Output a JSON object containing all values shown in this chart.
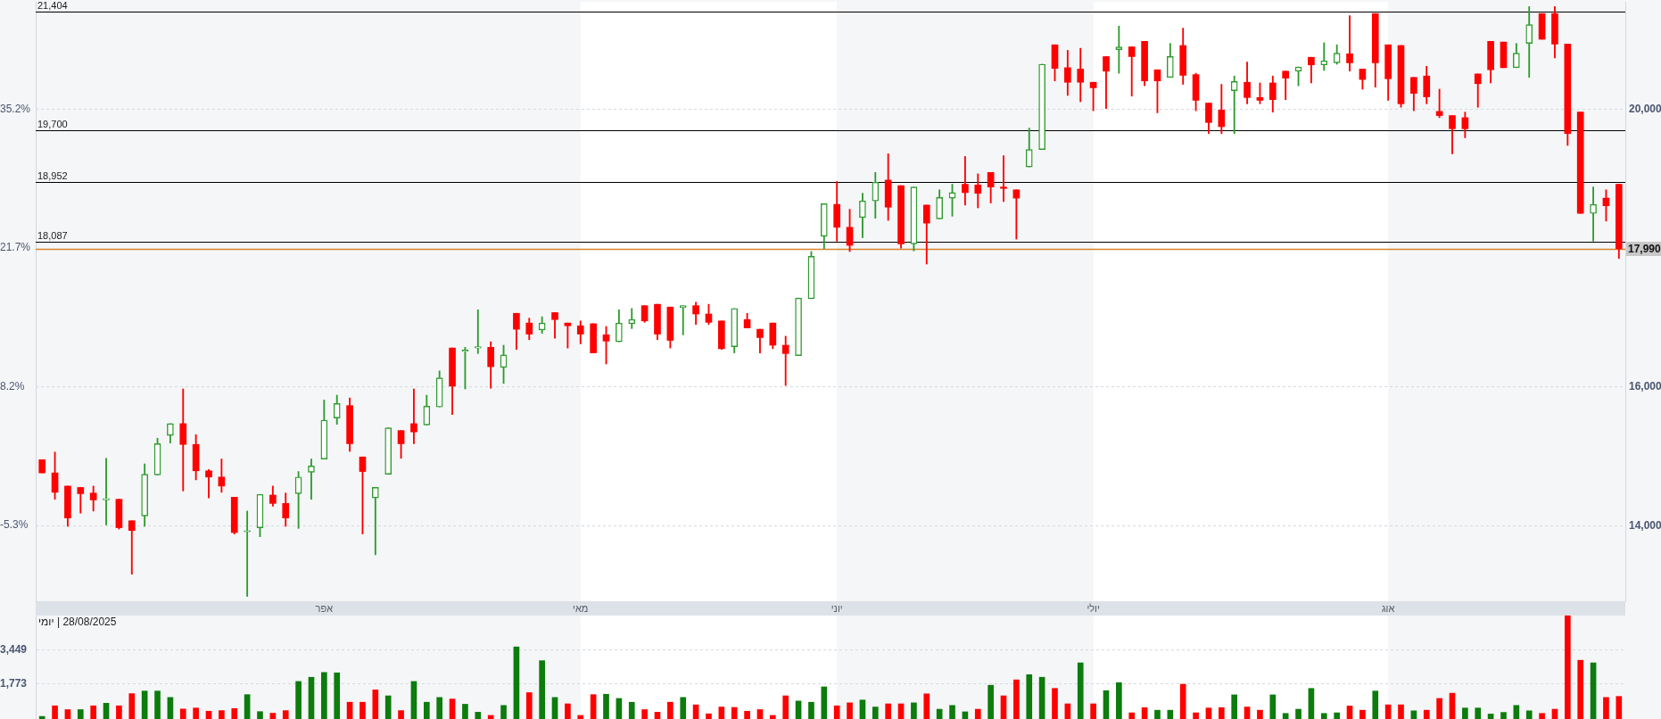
{
  "chart_data": [
    {
      "type": "candlestick",
      "categories": [
        null,
        null,
        null,
        null,
        null,
        null,
        null,
        null,
        null,
        null,
        null,
        null,
        null,
        null,
        null,
        null,
        null,
        null,
        null,
        null,
        null,
        null,
        "אפר",
        null,
        null,
        null,
        null,
        null,
        null,
        null,
        null,
        null,
        null,
        null,
        null,
        null,
        null,
        null,
        null,
        null,
        null,
        null,
        "מאי",
        null,
        null,
        null,
        null,
        null,
        null,
        null,
        null,
        null,
        null,
        null,
        null,
        null,
        null,
        null,
        null,
        null,
        null,
        null,
        "יוני",
        null,
        null,
        null,
        null,
        null,
        null,
        null,
        null,
        null,
        null,
        null,
        null,
        null,
        null,
        null,
        null,
        null,
        null,
        null,
        "יולי",
        null,
        null,
        null,
        null,
        null,
        null,
        null,
        null,
        null,
        null,
        null,
        null,
        null,
        null,
        null,
        null,
        null,
        null,
        null,
        null,
        null,
        null,
        "אוג",
        null,
        null,
        null,
        null,
        null,
        null,
        null,
        null,
        null,
        null,
        null,
        null,
        null,
        null,
        null,
        null,
        null,
        null
      ],
      "ohlc": [
        [
          14950,
          14950,
          14760,
          14760
        ],
        [
          14760,
          15060,
          14380,
          14480
        ],
        [
          14570,
          14570,
          13990,
          14110
        ],
        [
          14550,
          14550,
          14180,
          14460
        ],
        [
          14470,
          14570,
          14210,
          14370
        ],
        [
          14370,
          14970,
          14010,
          14380
        ],
        [
          14380,
          14380,
          13950,
          13970
        ],
        [
          14070,
          14070,
          13300,
          13930
        ],
        [
          14140,
          14890,
          13990,
          14740
        ],
        [
          14730,
          15260,
          14730,
          15180
        ],
        [
          15300,
          15470,
          15190,
          15470
        ],
        [
          15470,
          15970,
          14500,
          15170
        ],
        [
          15170,
          15310,
          14660,
          14790
        ],
        [
          14790,
          14810,
          14400,
          14700
        ],
        [
          14700,
          14960,
          14480,
          14570
        ],
        [
          14410,
          14410,
          13880,
          13900
        ],
        [
          13910,
          14210,
          12980,
          13920
        ],
        [
          13970,
          14450,
          13840,
          14450
        ],
        [
          14440,
          14570,
          14280,
          14320
        ],
        [
          14320,
          14470,
          13990,
          14110
        ],
        [
          14460,
          14780,
          13960,
          14700
        ],
        [
          14770,
          14960,
          14380,
          14860
        ],
        [
          14960,
          15810,
          14960,
          15520
        ],
        [
          15550,
          15880,
          15460,
          15760
        ],
        [
          15730,
          15840,
          15070,
          15180
        ],
        [
          14990,
          14990,
          13880,
          14780
        ],
        [
          14400,
          14550,
          13580,
          14550
        ],
        [
          14740,
          15410,
          14740,
          15410
        ],
        [
          15370,
          15370,
          14970,
          15180
        ],
        [
          15470,
          15970,
          15180,
          15350
        ],
        [
          15450,
          15880,
          15450,
          15720
        ],
        [
          15710,
          16230,
          15710,
          16130
        ],
        [
          16560,
          16560,
          15600,
          16010
        ],
        [
          16510,
          16570,
          15970,
          16530
        ],
        [
          16560,
          17110,
          16480,
          16570
        ],
        [
          16570,
          16650,
          15980,
          16290
        ],
        [
          16280,
          16600,
          16050,
          16460
        ],
        [
          17060,
          17060,
          16540,
          16830
        ],
        [
          16920,
          16990,
          16680,
          16760
        ],
        [
          16820,
          17010,
          16770,
          16920
        ],
        [
          17070,
          17070,
          16700,
          16970
        ],
        [
          16920,
          16920,
          16560,
          16880
        ],
        [
          16880,
          16950,
          16620,
          16760
        ],
        [
          16910,
          16910,
          16490,
          16490
        ],
        [
          16750,
          16870,
          16330,
          16660
        ],
        [
          16650,
          17110,
          16650,
          16920
        ],
        [
          16910,
          17130,
          16840,
          16970
        ],
        [
          17170,
          17170,
          16930,
          16950
        ],
        [
          17190,
          17190,
          16680,
          16760
        ],
        [
          17150,
          17150,
          16560,
          16670
        ],
        [
          17140,
          17170,
          16750,
          17170
        ],
        [
          17170,
          17220,
          16900,
          17050
        ],
        [
          17050,
          17190,
          16900,
          16930
        ],
        [
          16950,
          16950,
          16540,
          16550
        ],
        [
          16580,
          17130,
          16490,
          17130
        ],
        [
          16970,
          17060,
          16850,
          16850
        ],
        [
          16830,
          16830,
          16490,
          16710
        ],
        [
          16920,
          16920,
          16550,
          16600
        ],
        [
          16600,
          16730,
          16020,
          16480
        ],
        [
          16450,
          17280,
          16450,
          17280
        ],
        [
          17270,
          17950,
          17270,
          17880
        ],
        [
          18170,
          18640,
          17990,
          18640
        ],
        [
          18630,
          18960,
          18100,
          18300
        ],
        [
          18300,
          18560,
          17950,
          18040
        ],
        [
          18440,
          18790,
          18150,
          18680
        ],
        [
          18680,
          19090,
          18430,
          18950
        ],
        [
          18980,
          19360,
          18400,
          18590
        ],
        [
          18900,
          18900,
          18000,
          18060
        ],
        [
          18060,
          18880,
          17960,
          18880
        ],
        [
          18620,
          18620,
          17770,
          18360
        ],
        [
          18420,
          18840,
          18420,
          18730
        ],
        [
          18720,
          18920,
          18460,
          18800
        ],
        [
          18920,
          19320,
          18620,
          18800
        ],
        [
          18910,
          19070,
          18580,
          18790
        ],
        [
          19090,
          19090,
          18650,
          18880
        ],
        [
          18880,
          19330,
          18670,
          18860
        ],
        [
          18840,
          18840,
          18130,
          18720
        ],
        [
          19170,
          19730,
          19170,
          19420
        ],
        [
          19420,
          20650,
          19420,
          20650
        ],
        [
          20930,
          20930,
          20410,
          20590
        ],
        [
          20600,
          20850,
          20200,
          20390
        ],
        [
          20580,
          20880,
          20110,
          20390
        ],
        [
          20390,
          20390,
          19980,
          20310
        ],
        [
          20760,
          20760,
          20010,
          20550
        ],
        [
          20860,
          21200,
          20520,
          20900
        ],
        [
          20900,
          20900,
          20190,
          20760
        ],
        [
          20980,
          20980,
          20340,
          20410
        ],
        [
          20570,
          20570,
          19950,
          20410
        ],
        [
          20460,
          20950,
          20460,
          20760
        ],
        [
          20920,
          21170,
          20360,
          20490
        ],
        [
          20500,
          20520,
          19980,
          20130
        ],
        [
          20090,
          20090,
          19650,
          19810
        ],
        [
          19990,
          20360,
          19650,
          19750
        ],
        [
          20270,
          20480,
          19650,
          20400
        ],
        [
          20390,
          20680,
          20080,
          20170
        ],
        [
          20170,
          20380,
          20080,
          20130
        ],
        [
          20380,
          20480,
          19960,
          20140
        ],
        [
          20550,
          20550,
          20140,
          20450
        ],
        [
          20550,
          20610,
          20340,
          20610
        ],
        [
          20750,
          20750,
          20380,
          20640
        ],
        [
          20640,
          20960,
          20560,
          20700
        ],
        [
          20670,
          20930,
          20650,
          20810
        ],
        [
          20800,
          21350,
          20550,
          20670
        ],
        [
          20580,
          20580,
          20290,
          20430
        ],
        [
          21380,
          21380,
          20320,
          20670
        ],
        [
          20930,
          20930,
          20130,
          20440
        ],
        [
          20920,
          20920,
          20030,
          20080
        ],
        [
          20460,
          20460,
          19980,
          20230
        ],
        [
          20480,
          20620,
          20080,
          20180
        ],
        [
          19970,
          20290,
          19880,
          19910
        ],
        [
          19910,
          19910,
          19360,
          19720
        ],
        [
          19880,
          19960,
          19590,
          19720
        ],
        [
          20510,
          20510,
          20030,
          20370
        ],
        [
          20980,
          20980,
          20380,
          20570
        ],
        [
          20970,
          20970,
          20600,
          20600
        ],
        [
          20600,
          20950,
          20600,
          20810
        ],
        [
          20950,
          21480,
          20460,
          21220
        ],
        [
          21380,
          21380,
          21010,
          21010
        ],
        [
          21380,
          21480,
          20740,
          20940
        ],
        [
          20940,
          20940,
          19480,
          19650
        ],
        [
          19960,
          19960,
          18500,
          18500
        ],
        [
          18500,
          18880,
          18100,
          18630
        ],
        [
          18720,
          18840,
          18390,
          18610
        ],
        [
          18920,
          18920,
          17850,
          17990
        ]
      ],
      "colors": [
        "#ff0000",
        "#ff0000",
        "#ff0000",
        "#ff0000",
        "#ff0000",
        "#2e9b2e",
        "#ff0000",
        "#ff0000",
        "#2e9b2e",
        "#2e9b2e",
        "#2e9b2e",
        "#ff0000",
        "#ff0000",
        "#ff0000",
        "#ff0000",
        "#ff0000",
        "#2e9b2e",
        "#2e9b2e",
        "#ff0000",
        "#ff0000",
        "#2e9b2e",
        "#2e9b2e",
        "#2e9b2e",
        "#2e9b2e",
        "#ff0000",
        "#ff0000",
        "#2e9b2e",
        "#2e9b2e",
        "#ff0000",
        "#ff0000",
        "#2e9b2e",
        "#2e9b2e",
        "#ff0000",
        "#2e9b2e",
        "#2e9b2e",
        "#ff0000",
        "#2e9b2e",
        "#ff0000",
        "#ff0000",
        "#2e9b2e",
        "#ff0000",
        "#ff0000",
        "#ff0000",
        "#ff0000",
        "#ff0000",
        "#2e9b2e",
        "#2e9b2e",
        "#ff0000",
        "#ff0000",
        "#ff0000",
        "#2e9b2e",
        "#ff0000",
        "#ff0000",
        "#ff0000",
        "#2e9b2e",
        "#ff0000",
        "#ff0000",
        "#ff0000",
        "#ff0000",
        "#2e9b2e",
        "#2e9b2e",
        "#2e9b2e",
        "#ff0000",
        "#ff0000",
        "#2e9b2e",
        "#2e9b2e",
        "#ff0000",
        "#ff0000",
        "#2e9b2e",
        "#ff0000",
        "#2e9b2e",
        "#2e9b2e",
        "#ff0000",
        "#ff0000",
        "#ff0000",
        "#ff0000",
        "#ff0000",
        "#2e9b2e",
        "#2e9b2e",
        "#ff0000",
        "#ff0000",
        "#ff0000",
        "#ff0000",
        "#ff0000",
        "#2e9b2e",
        "#ff0000",
        "#ff0000",
        "#ff0000",
        "#2e9b2e",
        "#ff0000",
        "#ff0000",
        "#ff0000",
        "#ff0000",
        "#2e9b2e",
        "#ff0000",
        "#ff0000",
        "#ff0000",
        "#ff0000",
        "#2e9b2e",
        "#ff0000",
        "#2e9b2e",
        "#2e9b2e",
        "#ff0000",
        "#ff0000",
        "#ff0000",
        "#ff0000",
        "#ff0000",
        "#ff0000",
        "#ff0000",
        "#ff0000",
        "#ff0000",
        "#ff0000",
        "#ff0000",
        "#ff0000",
        "#ff0000",
        "#2e9b2e",
        "#2e9b2e",
        "#ff0000",
        "#ff0000",
        "#ff0000",
        "#ff0000",
        "#2e9b2e",
        "#ff0000",
        "#ff0000"
      ],
      "ylim": [
        12910,
        21550
      ],
      "yticks": [
        {
          "value": 14000,
          "label": "14,000"
        },
        {
          "value": 16000,
          "label": "16,000"
        },
        {
          "value": 20000,
          "label": "20,000"
        }
      ],
      "y2lim": [
        -12.7,
        45.7
      ],
      "y2ticks": [
        {
          "value": -5.3,
          "label": "-5.3%"
        },
        {
          "value": 8.2,
          "label": "8.2%"
        },
        {
          "value": 21.7,
          "label": "21.7%"
        },
        {
          "value": 35.2,
          "label": "35.2%"
        }
      ],
      "ref_lines": [
        {
          "axis": "y",
          "value": 21404,
          "label": "21,404",
          "color": "#000000"
        },
        {
          "axis": "y",
          "value": 19700,
          "label": "19,700",
          "color": "#000000"
        },
        {
          "axis": "y",
          "value": 18952,
          "label": "18,952",
          "color": "#000000"
        },
        {
          "axis": "y",
          "value": 18087,
          "label": "18,087",
          "color": "#000000"
        },
        {
          "axis": "y",
          "value": 17990,
          "label": "17,990",
          "color": "#d8842c"
        }
      ],
      "bands": [
        {
          "axis": "x",
          "from": "מאי",
          "to": "יוני",
          "color": "#ffffff"
        },
        {
          "axis": "x",
          "from": "יולי",
          "to": "אוג",
          "color": "#ffffff"
        }
      ],
      "grid": "y"
    },
    {
      "type": "bar",
      "categories": [
        null,
        null,
        null,
        null,
        null,
        null,
        null,
        null,
        null,
        null,
        null,
        null,
        null,
        null,
        null,
        null,
        null,
        null,
        null,
        null,
        null,
        null,
        "אפר",
        null,
        null,
        null,
        null,
        null,
        null,
        null,
        null,
        null,
        null,
        null,
        null,
        null,
        null,
        null,
        null,
        null,
        null,
        null,
        "מאי",
        null,
        null,
        null,
        null,
        null,
        null,
        null,
        null,
        null,
        null,
        null,
        null,
        null,
        null,
        null,
        null,
        null,
        null,
        null,
        "יוני",
        null,
        null,
        null,
        null,
        null,
        null,
        null,
        null,
        null,
        null,
        null,
        null,
        null,
        null,
        null,
        null,
        null,
        null,
        null,
        "יולי",
        null,
        null,
        null,
        null,
        null,
        null,
        null,
        null,
        null,
        null,
        null,
        null,
        null,
        null,
        null,
        null,
        null,
        null,
        null,
        null,
        null,
        null,
        "אוג",
        null,
        null,
        null,
        null,
        null,
        null,
        null,
        null,
        null,
        null,
        null,
        null,
        null,
        null,
        null,
        null,
        null,
        null
      ],
      "values": [
        130,
        660,
        470,
        470,
        660,
        790,
        660,
        1270,
        1400,
        1400,
        1080,
        500,
        550,
        390,
        420,
        520,
        1220,
        370,
        290,
        420,
        1880,
        2090,
        2330,
        2310,
        840,
        840,
        1460,
        1160,
        420,
        1880,
        840,
        1080,
        1000,
        740,
        340,
        180,
        680,
        3610,
        1320,
        2920,
        1080,
        760,
        180,
        1220,
        1240,
        1030,
        840,
        470,
        340,
        840,
        1080,
        710,
        260,
        600,
        580,
        390,
        470,
        180,
        1160,
        900,
        840,
        1610,
        660,
        810,
        950,
        600,
        760,
        760,
        810,
        1260,
        490,
        680,
        360,
        490,
        1690,
        1160,
        1960,
        2220,
        2090,
        1530,
        760,
        2810,
        760,
        1420,
        1820,
        310,
        570,
        440,
        440,
        1740,
        310,
        550,
        570,
        1210,
        600,
        440,
        1210,
        280,
        490,
        1530,
        280,
        310,
        650,
        440,
        1400,
        710,
        710,
        410,
        440,
        1030,
        1290,
        550,
        550,
        250,
        330,
        680,
        410,
        280,
        490,
        5180,
        2940,
        2810,
        1080,
        1130
      ],
      "colors": [
        "#0c7c0c",
        "#ff0000",
        "#ff0000",
        "#0c7c0c",
        "#ff0000",
        "#0c7c0c",
        "#ff0000",
        "#ff0000",
        "#0c7c0c",
        "#0c7c0c",
        "#0c7c0c",
        "#ff0000",
        "#ff0000",
        "#ff0000",
        "#ff0000",
        "#ff0000",
        "#0c7c0c",
        "#0c7c0c",
        "#ff0000",
        "#ff0000",
        "#0c7c0c",
        "#0c7c0c",
        "#0c7c0c",
        "#0c7c0c",
        "#ff0000",
        "#ff0000",
        "#ff0000",
        "#0c7c0c",
        "#ff0000",
        "#0c7c0c",
        "#0c7c0c",
        "#0c7c0c",
        "#ff0000",
        "#0c7c0c",
        "#0c7c0c",
        "#ff0000",
        "#0c7c0c",
        "#0c7c0c",
        "#ff0000",
        "#0c7c0c",
        "#0c7c0c",
        "#ff0000",
        "#ff0000",
        "#ff0000",
        "#0c7c0c",
        "#0c7c0c",
        "#0c7c0c",
        "#ff0000",
        "#ff0000",
        "#ff0000",
        "#0c7c0c",
        "#ff0000",
        "#ff0000",
        "#ff0000",
        "#ff0000",
        "#ff0000",
        "#ff0000",
        "#ff0000",
        "#ff0000",
        "#0c7c0c",
        "#0c7c0c",
        "#0c7c0c",
        "#ff0000",
        "#ff0000",
        "#0c7c0c",
        "#0c7c0c",
        "#ff0000",
        "#ff0000",
        "#0c7c0c",
        "#ff0000",
        "#0c7c0c",
        "#0c7c0c",
        "#0c7c0c",
        "#ff0000",
        "#0c7c0c",
        "#ff0000",
        "#ff0000",
        "#0c7c0c",
        "#0c7c0c",
        "#ff0000",
        "#ff0000",
        "#0c7c0c",
        "#ff0000",
        "#0c7c0c",
        "#0c7c0c",
        "#ff0000",
        "#ff0000",
        "#0c7c0c",
        "#0c7c0c",
        "#ff0000",
        "#ff0000",
        "#ff0000",
        "#ff0000",
        "#0c7c0c",
        "#ff0000",
        "#ff0000",
        "#0c7c0c",
        "#0c7c0c",
        "#0c7c0c",
        "#0c7c0c",
        "#0c7c0c",
        "#0c7c0c",
        "#ff0000",
        "#ff0000",
        "#0c7c0c",
        "#ff0000",
        "#ff0000",
        "#0c7c0c",
        "#ff0000",
        "#ff0000",
        "#ff0000",
        "#0c7c0c",
        "#0c7c0c",
        "#0c7c0c",
        "#0c7c0c",
        "#0c7c0c",
        "#0c7c0c",
        "#ff0000",
        "#ff0000",
        "#ff0000",
        "#ff0000",
        "#0c7c0c",
        "#ff0000",
        "#ff0000"
      ],
      "ylim": [
        0,
        5180
      ],
      "yticks": [
        {
          "value": 1773,
          "label": "1,773"
        },
        {
          "value": 3449,
          "label": "3,449"
        }
      ],
      "grid": "y",
      "tick_labels": "y",
      "bands": [
        {
          "axis": "x",
          "from": "מאי",
          "to": "יוני",
          "color": "#ffffff"
        },
        {
          "axis": "x",
          "from": "יולי",
          "to": "אוג",
          "color": "#ffffff"
        }
      ],
      "annotations": [
        "28/08/2025 | יומי"
      ]
    }
  ]
}
